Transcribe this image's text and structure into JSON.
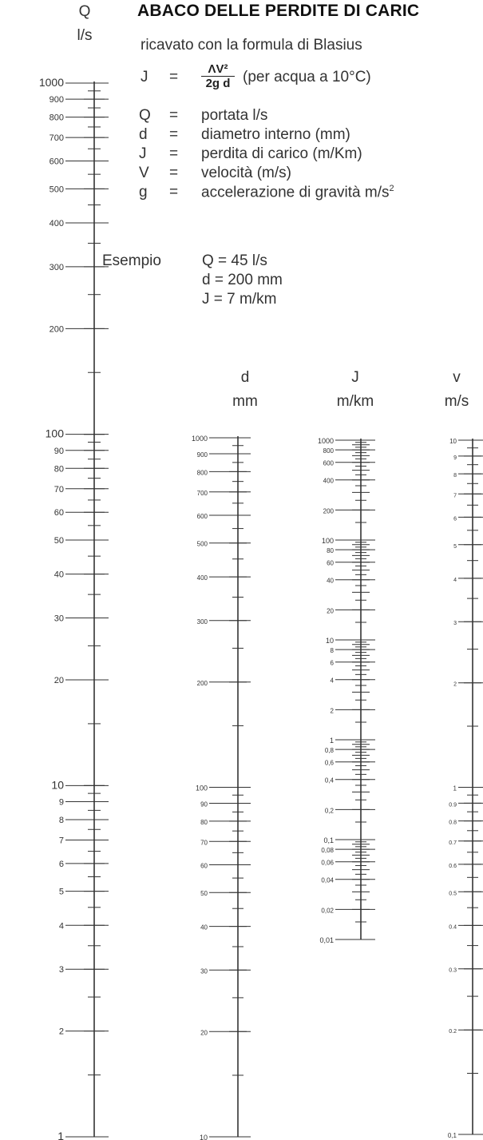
{
  "title": "ABACO DELLE PERDITE DI CARIC",
  "subtitle": "ricavato con la formula di Blasius",
  "headers": {
    "q": [
      "Q",
      "l/s"
    ],
    "d": [
      "d",
      "mm"
    ],
    "j": [
      "J",
      "m/km"
    ],
    "v": [
      "v",
      "m/s"
    ]
  },
  "formula": {
    "lhs": "J",
    "eq": "=",
    "numerator": "ΛV²",
    "denominator": "2g d",
    "note": "(per acqua a 10°C)"
  },
  "legend": [
    {
      "symbol": "Q",
      "eq": "=",
      "text": "portata l/s"
    },
    {
      "symbol": "d",
      "eq": "=",
      "text": "diametro interno (mm)"
    },
    {
      "symbol": "J",
      "eq": "=",
      "text": "perdita di carico (m/Km)"
    },
    {
      "symbol": "V",
      "eq": "=",
      "text": "velocità (m/s)"
    },
    {
      "symbol": "g",
      "eq": "=",
      "text": "accelerazione di gravità m/s",
      "sup": "2"
    }
  ],
  "example": {
    "label": "Esempio",
    "lines": [
      "Q = 45 l/s",
      "d = 200 mm",
      "J = 7 m/km"
    ]
  },
  "scales": [
    {
      "key": "q",
      "min": 1,
      "max": 1000,
      "labels": [
        "1",
        "2",
        "3",
        "4",
        "5",
        "6",
        "7",
        "8",
        "9",
        "10",
        "20",
        "30",
        "40",
        "50",
        "60",
        "70",
        "80",
        "90",
        "100",
        "200",
        "300",
        "400",
        "500",
        "600",
        "700",
        "800",
        "900",
        "1000"
      ],
      "label_values": [
        1,
        2,
        3,
        4,
        5,
        6,
        7,
        8,
        9,
        10,
        20,
        30,
        40,
        50,
        60,
        70,
        80,
        90,
        100,
        200,
        300,
        400,
        500,
        600,
        700,
        800,
        900,
        1000
      ]
    },
    {
      "key": "d",
      "min": 10,
      "max": 1000,
      "labels": [
        "10",
        "20",
        "30",
        "40",
        "50",
        "60",
        "70",
        "80",
        "90",
        "100",
        "200",
        "300",
        "400",
        "500",
        "600",
        "700",
        "800",
        "900",
        "1000"
      ],
      "label_values": [
        10,
        20,
        30,
        40,
        50,
        60,
        70,
        80,
        90,
        100,
        200,
        300,
        400,
        500,
        600,
        700,
        800,
        900,
        1000
      ]
    },
    {
      "key": "j",
      "min": 0.01,
      "max": 1000,
      "labels": [
        "0,01",
        "0,02",
        "0,04",
        "0,06",
        "0,08",
        "0,1",
        "0,2",
        "0,4",
        "0,6",
        "0,8",
        "1",
        "2",
        "4",
        "6",
        "8",
        "10",
        "20",
        "40",
        "60",
        "80",
        "100",
        "200",
        "400",
        "600",
        "800",
        "1000"
      ],
      "label_values": [
        0.01,
        0.02,
        0.04,
        0.06,
        0.08,
        0.1,
        0.2,
        0.4,
        0.6,
        0.8,
        1,
        2,
        4,
        6,
        8,
        10,
        20,
        40,
        60,
        80,
        100,
        200,
        400,
        600,
        800,
        1000
      ]
    },
    {
      "key": "v",
      "min": 0.1,
      "max": 10,
      "labels": [
        "0,1",
        "0.2",
        "0.3",
        "0.4",
        "0.5",
        "0.6",
        "0.7",
        "0.8",
        "0.9",
        "1",
        "2",
        "3",
        "4",
        "5",
        "6",
        "7",
        "8",
        "9",
        "10"
      ],
      "label_values": [
        0.1,
        0.2,
        0.3,
        0.4,
        0.5,
        0.6,
        0.7,
        0.8,
        0.9,
        1,
        2,
        3,
        4,
        5,
        6,
        7,
        8,
        9,
        10
      ]
    }
  ]
}
